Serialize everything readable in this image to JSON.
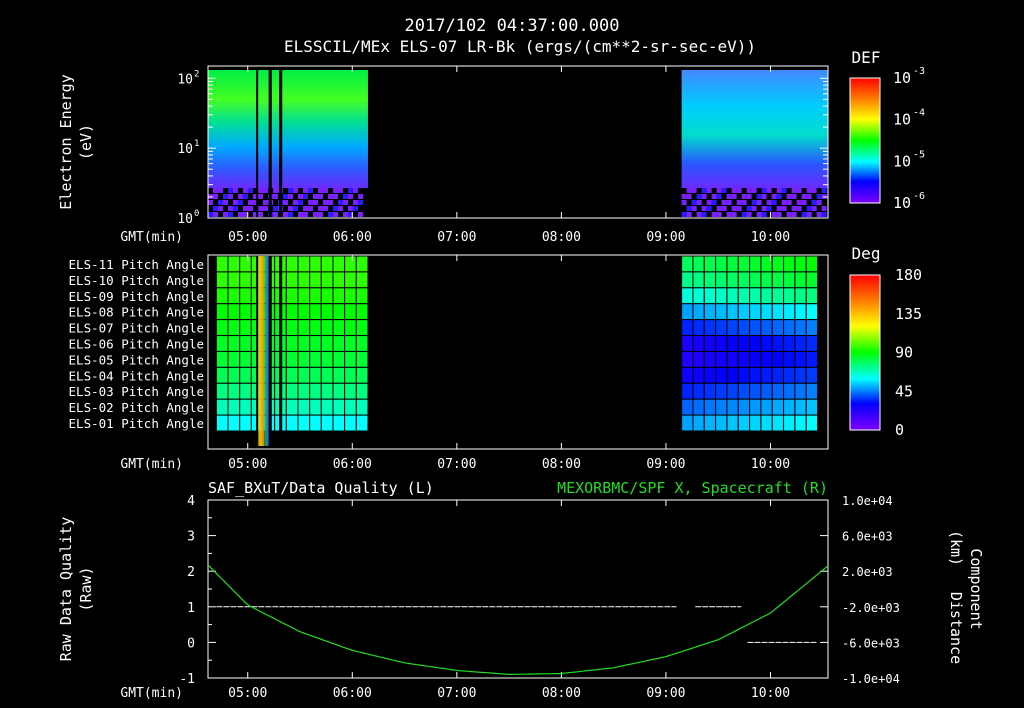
{
  "header": {
    "timestamp": "2017/102 04:37:00.000",
    "instrument": "ELSSCIL/MEx ELS-07 LR-Bk  (ergs/(cm**2-sr-sec-eV))"
  },
  "time_axis": {
    "label": "GMT(min)",
    "range_hours": [
      4.62,
      10.55
    ],
    "ticks": [
      {
        "t": 5.0,
        "label": "05:00"
      },
      {
        "t": 6.0,
        "label": "06:00"
      },
      {
        "t": 7.0,
        "label": "07:00"
      },
      {
        "t": 8.0,
        "label": "08:00"
      },
      {
        "t": 9.0,
        "label": "09:00"
      },
      {
        "t": 10.0,
        "label": "10:00"
      }
    ]
  },
  "colors": {
    "green_trace": "#22dd22",
    "colorbar": [
      "#7f00ff",
      "#0000ff",
      "#00ffff",
      "#00ff00",
      "#ffff00",
      "#ff7f00",
      "#ff0000"
    ]
  },
  "chart_data": [
    {
      "type": "heatmap",
      "title": "ELSSCIL/MEx ELS-07 LR-Bk",
      "ylabel_line1": "Electron Energy",
      "ylabel_line2": "(eV)",
      "yscale": "log",
      "ylim": [
        1,
        150
      ],
      "yticks": [
        {
          "base": "10",
          "exp": "0",
          "value": 1
        },
        {
          "base": "10",
          "exp": "1",
          "value": 10
        },
        {
          "base": "10",
          "exp": "2",
          "value": 100
        }
      ],
      "colorbar": {
        "title": "DEF",
        "ticks": [
          {
            "base": "10",
            "exp": "-3"
          },
          {
            "base": "10",
            "exp": "-4"
          },
          {
            "base": "10",
            "exp": "-5"
          },
          {
            "base": "10",
            "exp": "-6"
          }
        ]
      },
      "data_intervals_hours": [
        [
          4.62,
          6.15
        ],
        [
          9.15,
          10.55
        ]
      ],
      "gaps_hours": [
        [
          5.08,
          5.1
        ],
        [
          5.2,
          5.23
        ],
        [
          5.3,
          5.33
        ]
      ]
    },
    {
      "type": "heatmap",
      "ylabel": "",
      "rows": [
        "ELS-11 Pitch Angle",
        "ELS-10 Pitch Angle",
        "ELS-09 Pitch Angle",
        "ELS-08 Pitch Angle",
        "ELS-07 Pitch Angle",
        "ELS-06 Pitch Angle",
        "ELS-05 Pitch Angle",
        "ELS-04 Pitch Angle",
        "ELS-03 Pitch Angle",
        "ELS-02 Pitch Angle",
        "ELS-01 Pitch Angle"
      ],
      "colorbar": {
        "title": "Deg",
        "ticks": [
          "180",
          "135",
          "90",
          "45",
          "0"
        ],
        "range": [
          0,
          180
        ]
      },
      "data_intervals_hours": [
        [
          4.7,
          6.15
        ],
        [
          9.15,
          10.45
        ]
      ],
      "pitch_angle_deg_interval1": [
        95,
        95,
        93,
        90,
        88,
        86,
        84,
        80,
        75,
        68,
        60
      ],
      "pitch_angle_deg_interval2": [
        85,
        80,
        70,
        55,
        40,
        30,
        28,
        32,
        40,
        48,
        55
      ]
    },
    {
      "type": "line",
      "title_left": "SAF_BXuT/Data Quality (L)",
      "title_right": "MEXORBMC/SPF X, Spacecraft (R)",
      "ylabel_left_line1": "Raw Data Quality",
      "ylabel_left_line2": "(Raw)",
      "ylabel_right_line1": "Component",
      "ylabel_right_line2": "Distance",
      "ylabel_right_line3": "(km)",
      "ylim_left": [
        -1,
        4
      ],
      "yticks_left": [
        "4",
        "3",
        "2",
        "1",
        "0",
        "-1"
      ],
      "ylim_right": [
        -10000,
        10000
      ],
      "yticks_right": [
        "1.0e+04",
        "6.0e+03",
        "2.0e+03",
        "-2.0e+03",
        "-6.0e+03",
        "-1.0e+04"
      ],
      "series": [
        {
          "name": "Data Quality",
          "axis": "left",
          "segments": [
            {
              "x": [
                4.7,
                9.1
              ],
              "y": 1
            },
            {
              "x": [
                9.28,
                9.72
              ],
              "y": 1
            },
            {
              "x": [
                9.78,
                10.45
              ],
              "y": 0
            }
          ]
        },
        {
          "name": "SPF X",
          "axis": "right",
          "x": [
            4.62,
            5.0,
            5.5,
            6.0,
            6.5,
            7.0,
            7.5,
            8.0,
            8.5,
            9.0,
            9.5,
            10.0,
            10.55
          ],
          "y": [
            2700,
            -1800,
            -4800,
            -6900,
            -8300,
            -9150,
            -9600,
            -9500,
            -8850,
            -7600,
            -5700,
            -2700,
            2600
          ]
        }
      ]
    }
  ]
}
